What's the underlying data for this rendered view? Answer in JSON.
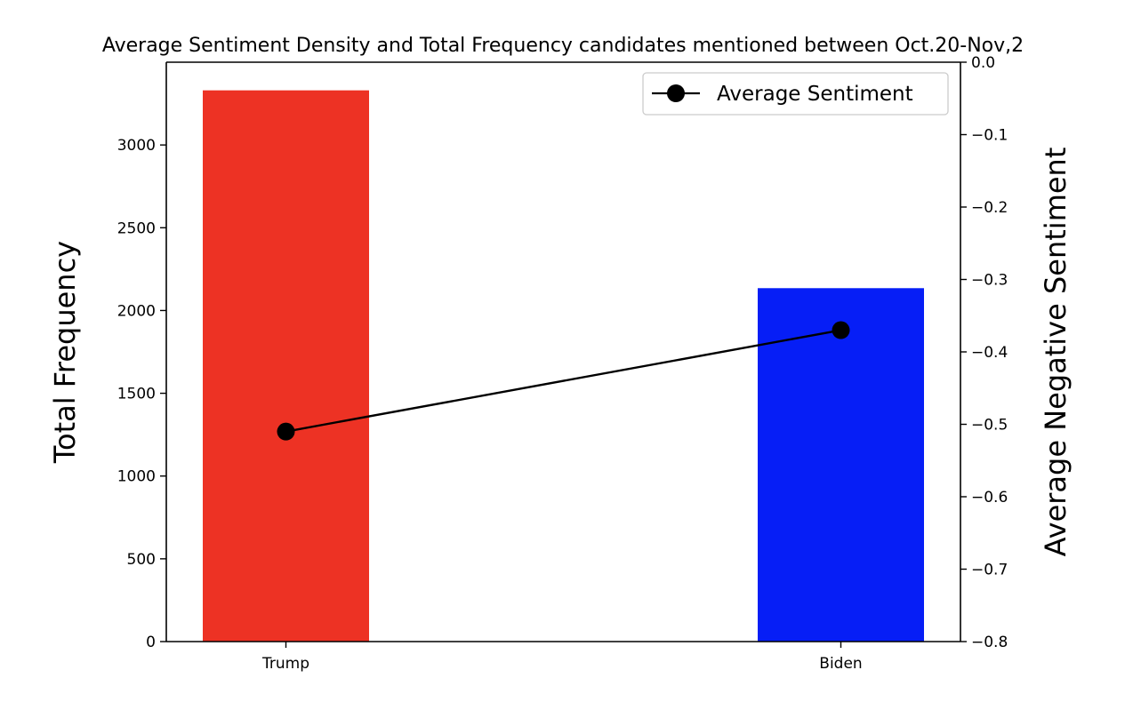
{
  "chart_data": {
    "type": "bar",
    "title": "Average Sentiment Density and Total Frequency candidates mentioned between Oct.20-Nov,2",
    "categories": [
      "Trump",
      "Biden"
    ],
    "bars": {
      "values": [
        3330,
        2135
      ],
      "colors": [
        "#ed3224",
        "#061ef6"
      ]
    },
    "line": {
      "name": "Average Sentiment",
      "values": [
        -0.51,
        -0.37
      ],
      "color": "#000000"
    },
    "y_left": {
      "label": "Total Frequency",
      "lim": [
        0,
        3500
      ],
      "ticks": [
        0,
        500,
        1000,
        1500,
        2000,
        2500,
        3000
      ],
      "tick_labels": [
        "0",
        "500",
        "1000",
        "1500",
        "2000",
        "2500",
        "3000"
      ]
    },
    "y_right": {
      "label": "Average Negative Sentiment",
      "lim": [
        -0.8,
        0.0
      ],
      "ticks": [
        0.0,
        -0.1,
        -0.2,
        -0.3,
        -0.4,
        -0.5,
        -0.6,
        -0.7,
        -0.8
      ],
      "tick_labels": [
        "0.0",
        "−0.1",
        "−0.2",
        "−0.3",
        "−0.4",
        "−0.5",
        "−0.6",
        "−0.7",
        "−0.8"
      ]
    },
    "legend": {
      "placement": "top-right",
      "entries": [
        "Average Sentiment"
      ]
    },
    "grid": false
  }
}
